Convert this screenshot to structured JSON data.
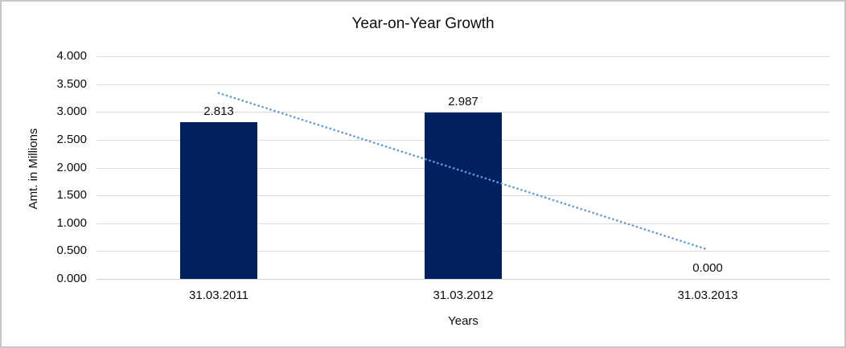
{
  "chart_data": {
    "type": "bar",
    "title": "Year-on-Year Growth",
    "xlabel": "Years",
    "ylabel": "Amt. in Millions",
    "categories": [
      "31.03.2011",
      "31.03.2012",
      "31.03.2013"
    ],
    "values": [
      2.813,
      2.987,
      0.0
    ],
    "data_labels": [
      "2.813",
      "2.987",
      "0.000"
    ],
    "ylim": [
      0,
      4
    ],
    "ytick_step": 0.5,
    "ytick_labels": [
      "0.000",
      "0.500",
      "1.000",
      "1.500",
      "2.000",
      "2.500",
      "3.000",
      "3.500",
      "4.000"
    ],
    "grid": true,
    "legend": "none",
    "colors": {
      "bar": "#002060",
      "trendline": "#5b9bd5",
      "gridline": "#d9d9d9",
      "text": "#0d0d0d"
    },
    "trendline": {
      "style": "dotted",
      "color": "#5b9bd5",
      "points": [
        [
          0,
          3.34
        ],
        [
          2,
          0.527
        ]
      ]
    }
  }
}
